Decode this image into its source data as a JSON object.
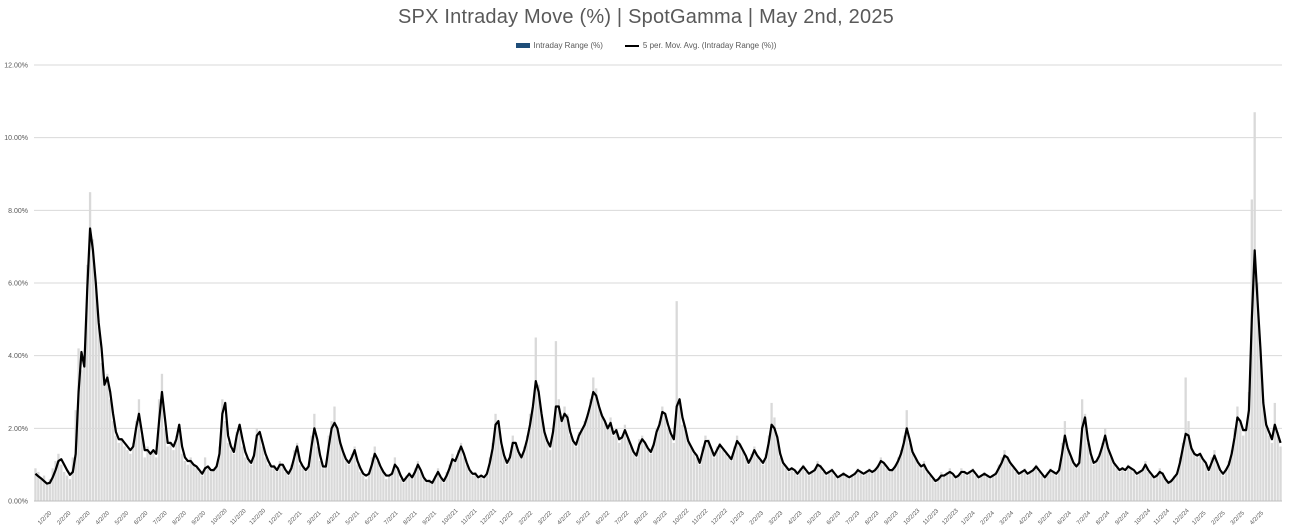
{
  "chart_data": {
    "type": "bar",
    "title": "SPX Intraday Move (%) | SpotGamma | May 2nd, 2025",
    "legend": [
      "Intraday Range (%)",
      "5 per. Mov. Avg. (Intraday Range (%))"
    ],
    "legend_position": "top",
    "grid": true,
    "ylim": [
      0,
      12
    ],
    "y_ticks": [
      "0.00%",
      "2.00%",
      "4.00%",
      "6.00%",
      "8.00%",
      "10.00%",
      "12.00%"
    ],
    "x_ticks": [
      "1/2/20",
      "2/2/20",
      "3/2/20",
      "4/2/20",
      "5/2/20",
      "6/2/20",
      "7/2/20",
      "8/2/20",
      "9/2/20",
      "10/2/20",
      "11/2/20",
      "12/2/20",
      "1/2/21",
      "2/2/21",
      "3/2/21",
      "4/2/21",
      "5/2/21",
      "6/2/21",
      "7/2/21",
      "8/2/21",
      "9/2/21",
      "10/2/21",
      "11/2/21",
      "12/2/21",
      "1/2/22",
      "2/2/22",
      "3/2/22",
      "4/2/22",
      "5/2/22",
      "6/2/22",
      "7/2/22",
      "8/2/22",
      "9/2/22",
      "10/2/22",
      "11/2/22",
      "12/2/22",
      "1/2/23",
      "2/2/23",
      "3/2/23",
      "4/2/23",
      "5/2/23",
      "6/2/23",
      "7/2/23",
      "8/2/23",
      "9/2/23",
      "10/2/23",
      "11/2/23",
      "12/2/23",
      "1/2/24",
      "2/2/24",
      "3/2/24",
      "4/2/24",
      "5/2/24",
      "6/2/24",
      "7/2/24",
      "8/2/24",
      "9/2/24",
      "10/2/24",
      "11/2/24",
      "12/2/24",
      "1/2/25",
      "2/2/25",
      "3/2/25",
      "4/2/25"
    ],
    "series": [
      {
        "name": "Intraday Range (%)",
        "type": "bar",
        "color": "#d9d9d9",
        "values": [
          0.9,
          0.8,
          0.6,
          0.7,
          0.5,
          0.6,
          0.9,
          1.1,
          1.3,
          1.0,
          0.8,
          0.7,
          0.6,
          1.2,
          2.5,
          4.2,
          3.6,
          4.0,
          6.5,
          8.5,
          7.2,
          6.0,
          4.8,
          3.8,
          3.2,
          3.5,
          2.8,
          2.2,
          1.8,
          1.6,
          1.7,
          1.5,
          1.4,
          1.3,
          1.6,
          2.2,
          2.8,
          1.8,
          1.2,
          1.5,
          1.3,
          1.4,
          1.2,
          2.8,
          3.5,
          2.0,
          1.5,
          1.6,
          1.4,
          1.8,
          2.0,
          1.3,
          1.1,
          1.0,
          1.2,
          1.0,
          0.9,
          0.8,
          0.7,
          1.2,
          0.9,
          0.8,
          0.9,
          1.0,
          1.5,
          2.8,
          2.2,
          1.6,
          1.4,
          1.3,
          1.9,
          2.0,
          1.5,
          1.2,
          1.1,
          1.0,
          1.3,
          2.0,
          1.8,
          1.5,
          1.2,
          1.0,
          0.9,
          1.0,
          0.8,
          1.1,
          1.0,
          0.8,
          0.7,
          1.0,
          1.4,
          1.6,
          1.0,
          0.9,
          0.8,
          1.0,
          1.8,
          2.4,
          1.5,
          1.1,
          0.9,
          1.0,
          1.8,
          2.2,
          2.6,
          2.0,
          1.6,
          1.3,
          1.1,
          1.0,
          1.3,
          1.5,
          1.0,
          0.8,
          0.7,
          0.6,
          0.8,
          1.2,
          1.5,
          1.1,
          0.9,
          0.8,
          0.6,
          0.7,
          0.8,
          1.2,
          0.9,
          0.6,
          0.5,
          0.7,
          0.8,
          0.6,
          0.9,
          1.1,
          0.8,
          0.6,
          0.5,
          0.6,
          0.5,
          0.7,
          0.9,
          0.6,
          0.5,
          0.8,
          1.0,
          1.3,
          1.1,
          1.4,
          1.6,
          1.2,
          1.0,
          0.8,
          0.7,
          0.8,
          0.6,
          0.7,
          0.6,
          0.8,
          1.2,
          1.6,
          2.4,
          2.2,
          1.5,
          1.2,
          1.0,
          1.3,
          1.8,
          1.6,
          1.3,
          1.2,
          1.5,
          1.8,
          2.4,
          2.6,
          4.5,
          3.2,
          2.4,
          1.9,
          1.6,
          1.4,
          2.0,
          4.4,
          2.8,
          2.2,
          2.6,
          2.4,
          1.8,
          1.6,
          1.5,
          1.9,
          2.0,
          2.2,
          2.4,
          2.8,
          3.4,
          3.1,
          2.6,
          2.4,
          2.2,
          2.0,
          2.3,
          1.8,
          2.0,
          1.6,
          1.8,
          2.1,
          1.7,
          1.5,
          1.3,
          1.2,
          1.7,
          1.8,
          1.6,
          1.4,
          1.3,
          1.6,
          2.0,
          2.2,
          2.6,
          2.4,
          2.0,
          1.8,
          1.6,
          5.5,
          2.8,
          2.1,
          2.0,
          1.6,
          1.5,
          1.3,
          1.2,
          1.0,
          1.5,
          1.8,
          1.7,
          1.4,
          1.2,
          1.5,
          1.6,
          1.4,
          1.3,
          1.2,
          1.1,
          1.5,
          1.8,
          1.6,
          1.4,
          1.2,
          1.0,
          1.3,
          1.5,
          1.2,
          1.1,
          1.0,
          1.3,
          1.8,
          2.7,
          2.3,
          1.8,
          1.2,
          1.0,
          0.9,
          0.8,
          0.9,
          0.8,
          0.7,
          0.9,
          1.0,
          0.8,
          0.7,
          0.8,
          0.9,
          1.1,
          1.0,
          0.8,
          0.7,
          0.8,
          0.9,
          0.7,
          0.6,
          0.7,
          0.8,
          0.7,
          0.6,
          0.7,
          0.8,
          0.9,
          0.8,
          0.7,
          0.8,
          0.9,
          0.8,
          0.9,
          1.0,
          1.2,
          1.0,
          0.9,
          0.8,
          0.9,
          1.0,
          1.2,
          1.4,
          1.8,
          2.5,
          1.6,
          1.3,
          1.2,
          1.0,
          0.9,
          1.1,
          0.8,
          0.7,
          0.6,
          0.5,
          0.6,
          0.8,
          0.7,
          0.8,
          0.9,
          0.7,
          0.6,
          0.7,
          0.9,
          0.8,
          0.7,
          0.8,
          0.9,
          0.7,
          0.6,
          0.7,
          0.8,
          0.7,
          0.6,
          0.7,
          0.8,
          1.0,
          1.2,
          1.4,
          1.2,
          1.0,
          0.9,
          0.8,
          0.7,
          0.8,
          0.9,
          0.7,
          0.8,
          0.9,
          1.0,
          0.8,
          0.7,
          0.6,
          0.8,
          0.9,
          0.8,
          0.7,
          0.9,
          1.6,
          2.2,
          1.4,
          1.2,
          1.0,
          0.9,
          1.1,
          2.8,
          2.4,
          1.6,
          1.2,
          1.0,
          1.1,
          1.3,
          1.6,
          2.0,
          1.4,
          1.2,
          1.0,
          0.9,
          0.8,
          0.9,
          0.8,
          1.0,
          0.9,
          0.8,
          0.7,
          0.8,
          0.9,
          1.1,
          0.8,
          0.7,
          0.6,
          0.7,
          0.9,
          0.8,
          0.6,
          0.5,
          0.6,
          0.7,
          0.8,
          1.2,
          1.6,
          3.4,
          2.2,
          1.5,
          1.3,
          1.2,
          1.3,
          1.1,
          1.0,
          0.8,
          1.2,
          1.4,
          1.0,
          0.8,
          0.7,
          0.9,
          1.1,
          1.4,
          2.0,
          2.6,
          2.2,
          1.8,
          2.0,
          3.0,
          8.3,
          10.7,
          6.0,
          4.2,
          2.8,
          2.1,
          1.8,
          1.6,
          2.7,
          1.9,
          1.5
        ]
      },
      {
        "name": "5 per. Mov. Avg. (Intraday Range (%))",
        "type": "line",
        "color": "#000000",
        "values": [
          0.75,
          0.68,
          0.62,
          0.55,
          0.48,
          0.5,
          0.65,
          0.85,
          1.1,
          1.15,
          1.0,
          0.85,
          0.72,
          0.8,
          1.3,
          3.0,
          4.1,
          3.7,
          5.8,
          7.5,
          6.9,
          6.0,
          4.9,
          4.2,
          3.2,
          3.4,
          3.0,
          2.4,
          1.9,
          1.7,
          1.7,
          1.6,
          1.5,
          1.4,
          1.5,
          2.0,
          2.4,
          1.9,
          1.4,
          1.4,
          1.3,
          1.4,
          1.3,
          2.2,
          3.0,
          2.3,
          1.6,
          1.6,
          1.5,
          1.7,
          2.1,
          1.5,
          1.2,
          1.1,
          1.1,
          1.0,
          0.95,
          0.85,
          0.75,
          0.9,
          0.95,
          0.85,
          0.85,
          0.95,
          1.3,
          2.4,
          2.7,
          1.8,
          1.5,
          1.35,
          1.8,
          2.1,
          1.7,
          1.35,
          1.15,
          1.05,
          1.25,
          1.8,
          1.9,
          1.6,
          1.3,
          1.1,
          0.95,
          0.95,
          0.85,
          1.0,
          1.0,
          0.85,
          0.75,
          0.9,
          1.2,
          1.5,
          1.1,
          0.95,
          0.85,
          0.95,
          1.5,
          2.0,
          1.7,
          1.25,
          0.95,
          0.95,
          1.5,
          2.0,
          2.15,
          2.0,
          1.6,
          1.35,
          1.15,
          1.05,
          1.2,
          1.4,
          1.1,
          0.9,
          0.75,
          0.7,
          0.75,
          1.0,
          1.3,
          1.15,
          0.95,
          0.8,
          0.7,
          0.7,
          0.75,
          1.0,
          0.9,
          0.7,
          0.55,
          0.65,
          0.75,
          0.65,
          0.8,
          1.0,
          0.85,
          0.65,
          0.55,
          0.55,
          0.5,
          0.65,
          0.8,
          0.65,
          0.55,
          0.7,
          0.9,
          1.15,
          1.1,
          1.3,
          1.5,
          1.3,
          1.05,
          0.85,
          0.75,
          0.75,
          0.65,
          0.7,
          0.65,
          0.75,
          1.05,
          1.45,
          2.1,
          2.2,
          1.6,
          1.25,
          1.05,
          1.2,
          1.6,
          1.6,
          1.35,
          1.2,
          1.4,
          1.7,
          2.1,
          2.6,
          3.3,
          3.0,
          2.4,
          1.9,
          1.65,
          1.5,
          1.9,
          2.6,
          2.6,
          2.2,
          2.4,
          2.3,
          1.9,
          1.65,
          1.55,
          1.8,
          1.95,
          2.1,
          2.35,
          2.65,
          3.0,
          2.9,
          2.6,
          2.35,
          2.2,
          2.0,
          2.15,
          1.85,
          1.95,
          1.7,
          1.75,
          1.95,
          1.75,
          1.55,
          1.35,
          1.25,
          1.55,
          1.7,
          1.6,
          1.45,
          1.35,
          1.55,
          1.9,
          2.1,
          2.45,
          2.4,
          2.1,
          1.85,
          1.7,
          2.6,
          2.8,
          2.3,
          2.0,
          1.65,
          1.5,
          1.35,
          1.25,
          1.05,
          1.35,
          1.65,
          1.65,
          1.45,
          1.25,
          1.4,
          1.55,
          1.45,
          1.35,
          1.25,
          1.15,
          1.4,
          1.65,
          1.55,
          1.4,
          1.25,
          1.05,
          1.2,
          1.4,
          1.25,
          1.15,
          1.05,
          1.2,
          1.6,
          2.1,
          2.0,
          1.75,
          1.3,
          1.05,
          0.95,
          0.85,
          0.9,
          0.85,
          0.75,
          0.85,
          0.95,
          0.85,
          0.75,
          0.8,
          0.85,
          1.0,
          0.95,
          0.85,
          0.75,
          0.8,
          0.85,
          0.75,
          0.65,
          0.7,
          0.75,
          0.7,
          0.65,
          0.7,
          0.75,
          0.85,
          0.8,
          0.75,
          0.8,
          0.85,
          0.8,
          0.85,
          0.95,
          1.1,
          1.05,
          0.95,
          0.85,
          0.85,
          0.95,
          1.1,
          1.3,
          1.6,
          2.0,
          1.7,
          1.35,
          1.2,
          1.05,
          0.95,
          1.0,
          0.85,
          0.75,
          0.65,
          0.55,
          0.6,
          0.7,
          0.7,
          0.75,
          0.8,
          0.75,
          0.65,
          0.7,
          0.8,
          0.8,
          0.75,
          0.8,
          0.85,
          0.75,
          0.65,
          0.7,
          0.75,
          0.7,
          0.65,
          0.7,
          0.75,
          0.9,
          1.05,
          1.25,
          1.2,
          1.05,
          0.95,
          0.85,
          0.75,
          0.8,
          0.85,
          0.75,
          0.8,
          0.85,
          0.95,
          0.85,
          0.75,
          0.65,
          0.75,
          0.85,
          0.8,
          0.75,
          0.85,
          1.3,
          1.8,
          1.45,
          1.25,
          1.05,
          0.95,
          1.05,
          2.0,
          2.3,
          1.7,
          1.3,
          1.05,
          1.1,
          1.25,
          1.5,
          1.8,
          1.45,
          1.25,
          1.05,
          0.95,
          0.85,
          0.9,
          0.85,
          0.95,
          0.9,
          0.85,
          0.75,
          0.8,
          0.85,
          1.0,
          0.85,
          0.75,
          0.65,
          0.7,
          0.8,
          0.75,
          0.6,
          0.5,
          0.55,
          0.65,
          0.75,
          1.05,
          1.45,
          1.85,
          1.8,
          1.45,
          1.3,
          1.25,
          1.3,
          1.15,
          1.05,
          0.85,
          1.05,
          1.25,
          1.05,
          0.85,
          0.75,
          0.85,
          1.0,
          1.3,
          1.75,
          2.3,
          2.2,
          1.95,
          1.95,
          2.5,
          5.0,
          6.9,
          5.5,
          4.2,
          2.7,
          2.1,
          1.9,
          1.7,
          2.1,
          1.85,
          1.6
        ]
      }
    ]
  }
}
